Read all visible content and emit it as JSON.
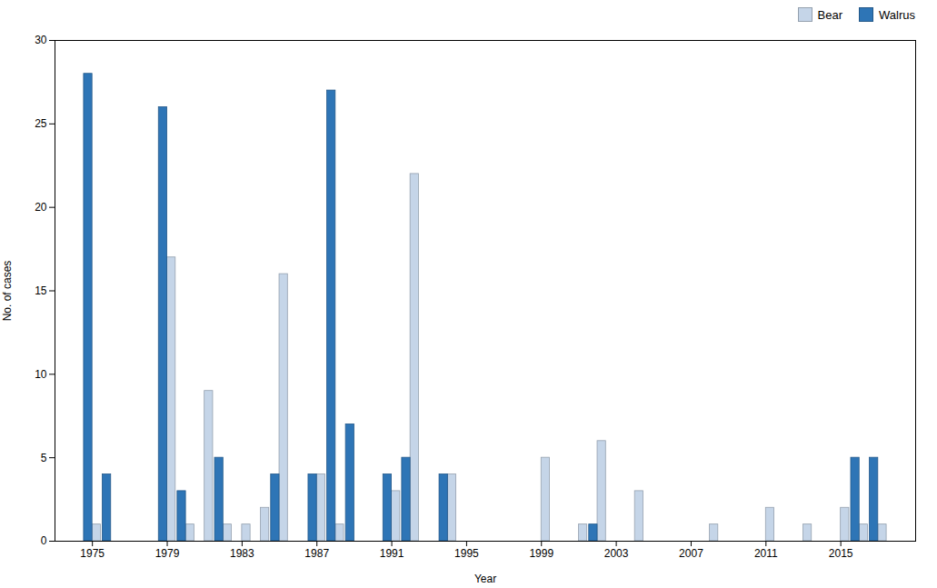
{
  "chart_data": {
    "type": "bar",
    "title": "",
    "xlabel": "Year",
    "ylabel": "No. of cases",
    "x": [
      1975,
      1976,
      1977,
      1978,
      1979,
      1980,
      1981,
      1982,
      1983,
      1984,
      1985,
      1986,
      1987,
      1988,
      1989,
      1990,
      1991,
      1992,
      1993,
      1994,
      1995,
      1996,
      1997,
      1998,
      1999,
      2000,
      2001,
      2002,
      2003,
      2004,
      2005,
      2006,
      2007,
      2008,
      2009,
      2010,
      2011,
      2012,
      2013,
      2014,
      2015,
      2016,
      2017
    ],
    "series": [
      {
        "name": "Bear",
        "color": "#c5d5e8",
        "values": [
          1,
          0,
          0,
          0,
          17,
          1,
          9,
          1,
          1,
          2,
          16,
          0,
          4,
          1,
          0,
          0,
          3,
          22,
          0,
          4,
          0,
          0,
          0,
          0,
          5,
          0,
          1,
          6,
          0,
          3,
          0,
          0,
          0,
          1,
          0,
          0,
          2,
          0,
          1,
          0,
          2,
          1,
          1
        ]
      },
      {
        "name": "Walrus",
        "color": "#2e75b6",
        "values": [
          28,
          4,
          0,
          0,
          26,
          3,
          0,
          5,
          0,
          0,
          4,
          0,
          4,
          27,
          7,
          0,
          4,
          5,
          0,
          4,
          0,
          0,
          0,
          0,
          0,
          0,
          0,
          1,
          0,
          0,
          0,
          0,
          0,
          0,
          0,
          0,
          0,
          0,
          0,
          0,
          0,
          5,
          5
        ]
      }
    ],
    "xlim": [
      1973,
      2019
    ],
    "xticks": [
      1975,
      1979,
      1983,
      1987,
      1991,
      1995,
      1999,
      2003,
      2007,
      2011,
      2015
    ],
    "ylim": [
      0,
      30
    ],
    "yticks": [
      0,
      5,
      10,
      15,
      20,
      25,
      30
    ],
    "grid": false,
    "legend": "upper right"
  }
}
